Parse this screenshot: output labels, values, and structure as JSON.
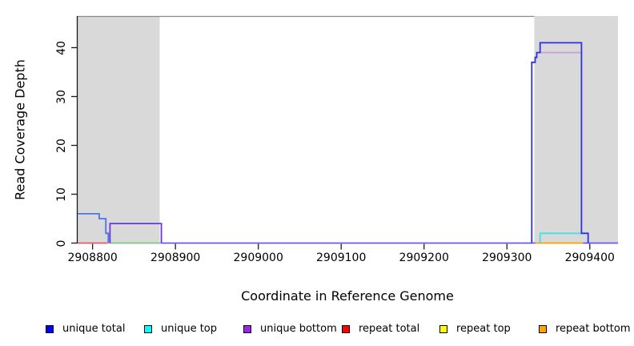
{
  "figure": {
    "title": "",
    "x_axis": {
      "label": "Coordinate in Reference Genome",
      "tick_labels": [
        "2908800",
        "2908900",
        "2909000",
        "2909100",
        "2909200",
        "2909300",
        "2909400"
      ]
    },
    "y_axis": {
      "label": "Read Coverage Depth",
      "tick_labels": [
        "0",
        "10",
        "20",
        "30",
        "40"
      ]
    },
    "legend": [
      {
        "label": "unique total",
        "color": "#0000FF"
      },
      {
        "label": "unique top",
        "color": "#00FFFF"
      },
      {
        "label": "unique bottom",
        "color": "#A020F0"
      },
      {
        "label": "repeat total",
        "color": "#FF0000"
      },
      {
        "label": "repeat top",
        "color": "#FFFF00"
      },
      {
        "label": "repeat bottom",
        "color": "#FFA500"
      }
    ],
    "colors": {
      "shaded_region": "#D9D9D9",
      "plot_top_border": "#8a8a8a",
      "axis": "#1a1a1a",
      "background": "#ffffff"
    }
  },
  "chart_data": {
    "type": "line",
    "subtype": "step-coverage",
    "title": "",
    "xlabel": "Coordinate in Reference Genome",
    "ylabel": "Read Coverage Depth",
    "xlim": [
      2908782,
      2909434
    ],
    "ylim": [
      0,
      46.5
    ],
    "x_ticks": [
      2908800,
      2908900,
      2909000,
      2909100,
      2909200,
      2909300,
      2909400
    ],
    "y_ticks": [
      0,
      10,
      20,
      30,
      40
    ],
    "grid": false,
    "legend_position": "bottom",
    "shaded_regions": {
      "color": "#D9D9D9",
      "x_intervals": [
        [
          2908782,
          2908881
        ],
        [
          2909333,
          2909434
        ]
      ]
    },
    "series": [
      {
        "name": "unique total",
        "color": "#0000FF",
        "steps": [
          [
            2908782,
            6
          ],
          [
            2908808,
            5
          ],
          [
            2908816,
            2
          ],
          [
            2908819,
            0
          ],
          [
            2908821,
            4
          ],
          [
            2908883,
            0
          ],
          [
            2909330,
            37
          ],
          [
            2909334,
            38
          ],
          [
            2909336,
            39
          ],
          [
            2909340,
            41
          ],
          [
            2909390,
            2
          ],
          [
            2909398,
            0
          ]
        ]
      },
      {
        "name": "unique top",
        "color": "#00FFFF",
        "steps": [
          [
            2908782,
            0
          ],
          [
            2909340,
            2
          ],
          [
            2909390,
            0
          ]
        ]
      },
      {
        "name": "unique bottom",
        "color": "#A020F0",
        "steps": [
          [
            2908782,
            0
          ],
          [
            2908821,
            4
          ],
          [
            2908883,
            0
          ],
          [
            2909330,
            37
          ],
          [
            2909334,
            38
          ],
          [
            2909336,
            39
          ],
          [
            2909390,
            0
          ]
        ]
      },
      {
        "name": "repeat total",
        "color": "#FF0000",
        "steps": [
          [
            2908782,
            0
          ]
        ]
      },
      {
        "name": "repeat top",
        "color": "#FFFF00",
        "steps": [
          [
            2908782,
            0
          ]
        ]
      },
      {
        "name": "repeat bottom",
        "color": "#FFA500",
        "steps": [
          [
            2908782,
            0
          ]
        ]
      }
    ],
    "rendered_segments": [
      {
        "name": "repeat-total-baseline",
        "color": "#e05e68",
        "points": [
          [
            2908782,
            0
          ],
          [
            2908818,
            0
          ]
        ]
      },
      {
        "name": "overlap-baseline-green",
        "color": "#7fc87f",
        "points": [
          [
            2908820,
            0
          ],
          [
            2908883,
            0
          ]
        ]
      },
      {
        "name": "baseline-violet-mid",
        "color": "#6a5aee",
        "points": [
          [
            2908883,
            0
          ],
          [
            2909334,
            0
          ]
        ]
      },
      {
        "name": "repeat-bottom-baseline",
        "color": "#ff9f00",
        "points": [
          [
            2909334,
            0
          ],
          [
            2909392,
            0
          ]
        ]
      },
      {
        "name": "baseline-violet-right",
        "color": "#6a5aee",
        "points": [
          [
            2909392,
            0
          ],
          [
            2909434,
            0
          ]
        ]
      },
      {
        "name": "unique-top-step",
        "color": "#4ddde2",
        "points": [
          [
            2909340,
            0
          ],
          [
            2909340,
            2
          ],
          [
            2909390,
            2
          ]
        ]
      },
      {
        "name": "unique-total-left",
        "color": "#4a75e8",
        "points": [
          [
            2908782,
            6
          ],
          [
            2908808,
            6
          ],
          [
            2908808,
            5
          ],
          [
            2908816,
            5
          ],
          [
            2908816,
            2
          ],
          [
            2908819,
            2
          ],
          [
            2908819,
            0
          ]
        ]
      },
      {
        "name": "unique-bottom-left",
        "color": "#6936e6",
        "points": [
          [
            2908821,
            0
          ],
          [
            2908821,
            4
          ],
          [
            2908883,
            4
          ],
          [
            2908883,
            0
          ]
        ]
      },
      {
        "name": "unique-bottom-right",
        "color": "#c79ee0",
        "points": [
          [
            2909337,
            39
          ],
          [
            2909390,
            39
          ]
        ]
      },
      {
        "name": "unique-total-right",
        "color": "#3030df",
        "points": [
          [
            2909330,
            0
          ],
          [
            2909330,
            37
          ],
          [
            2909334,
            37
          ],
          [
            2909334,
            38
          ],
          [
            2909336,
            38
          ],
          [
            2909336,
            39
          ],
          [
            2909340,
            39
          ],
          [
            2909340,
            41
          ],
          [
            2909390,
            41
          ],
          [
            2909390,
            2
          ],
          [
            2909398,
            2
          ],
          [
            2909398,
            0
          ]
        ]
      }
    ]
  }
}
